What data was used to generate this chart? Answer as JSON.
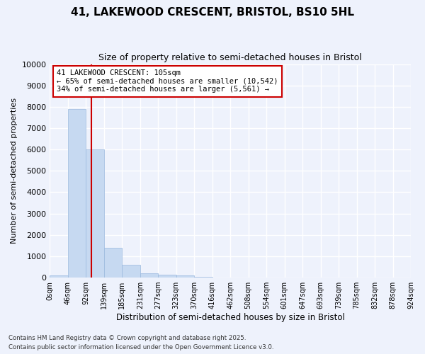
{
  "title": "41, LAKEWOOD CRESCENT, BRISTOL, BS10 5HL",
  "subtitle": "Size of property relative to semi-detached houses in Bristol",
  "xlabel": "Distribution of semi-detached houses by size in Bristol",
  "ylabel": "Number of semi-detached properties",
  "bar_values": [
    100,
    7900,
    6000,
    1400,
    600,
    210,
    150,
    95,
    30,
    10,
    5,
    3,
    2,
    1,
    1,
    1,
    0,
    0,
    0,
    0
  ],
  "bin_labels": [
    "0sqm",
    "46sqm",
    "92sqm",
    "139sqm",
    "185sqm",
    "231sqm",
    "277sqm",
    "323sqm",
    "370sqm",
    "416sqm",
    "462sqm",
    "508sqm",
    "554sqm",
    "601sqm",
    "647sqm",
    "693sqm",
    "739sqm",
    "785sqm",
    "832sqm",
    "878sqm",
    "924sqm"
  ],
  "bar_color": "#c6d9f1",
  "bar_edge_color": "#9ab8de",
  "background_color": "#eef2fc",
  "grid_color": "#ffffff",
  "red_line_x": 2.28,
  "annotation_text": "41 LAKEWOOD CRESCENT: 105sqm\n← 65% of semi-detached houses are smaller (10,542)\n34% of semi-detached houses are larger (5,561) →",
  "annotation_box_color": "#ffffff",
  "annotation_border_color": "#cc0000",
  "ylim": [
    0,
    10000
  ],
  "yticks": [
    0,
    1000,
    2000,
    3000,
    4000,
    5000,
    6000,
    7000,
    8000,
    9000,
    10000
  ],
  "footer_line1": "Contains HM Land Registry data © Crown copyright and database right 2025.",
  "footer_line2": "Contains public sector information licensed under the Open Government Licence v3.0."
}
